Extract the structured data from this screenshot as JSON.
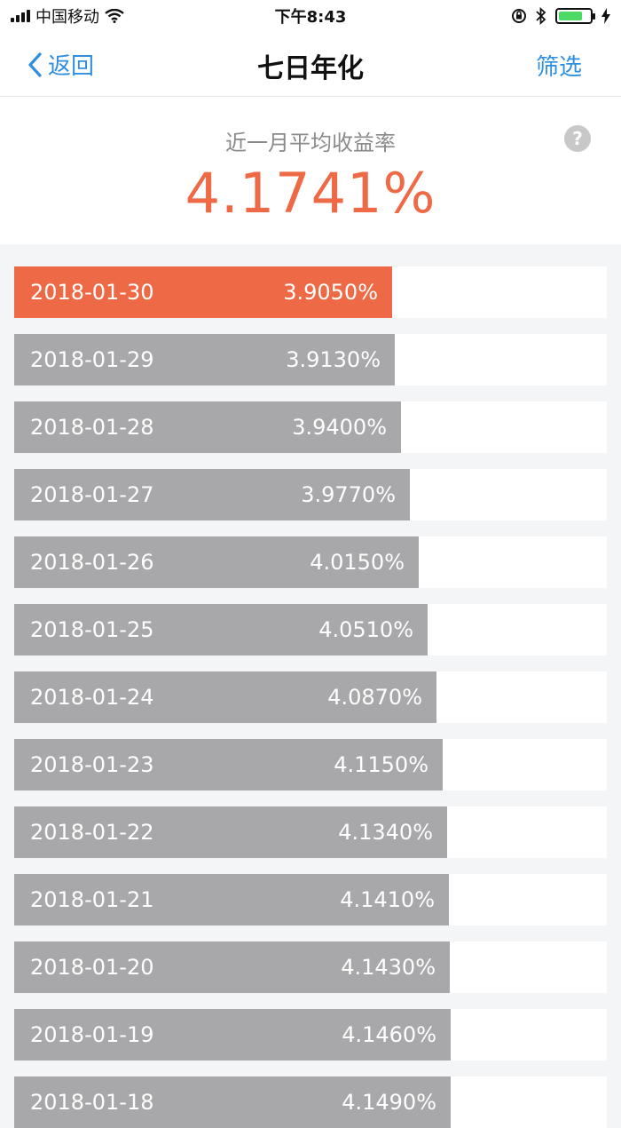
{
  "status_bar": {
    "carrier": "中国移动",
    "time": "下午8:43"
  },
  "nav": {
    "back_label": "返回",
    "title": "七日年化",
    "filter_label": "筛选"
  },
  "summary": {
    "label": "近一月平均收益率",
    "value": "4.1741%",
    "help_icon": "?"
  },
  "colors": {
    "accent": "#ee6a47",
    "link": "#2f8fde",
    "bar": "#a8a8aa"
  },
  "rows": [
    {
      "date": "2018-01-30",
      "rate": "3.9050%",
      "value": 3.905,
      "active": true
    },
    {
      "date": "2018-01-29",
      "rate": "3.9130%",
      "value": 3.913
    },
    {
      "date": "2018-01-28",
      "rate": "3.9400%",
      "value": 3.94
    },
    {
      "date": "2018-01-27",
      "rate": "3.9770%",
      "value": 3.977
    },
    {
      "date": "2018-01-26",
      "rate": "4.0150%",
      "value": 4.015
    },
    {
      "date": "2018-01-25",
      "rate": "4.0510%",
      "value": 4.051
    },
    {
      "date": "2018-01-24",
      "rate": "4.0870%",
      "value": 4.087
    },
    {
      "date": "2018-01-23",
      "rate": "4.1150%",
      "value": 4.115
    },
    {
      "date": "2018-01-22",
      "rate": "4.1340%",
      "value": 4.134
    },
    {
      "date": "2018-01-21",
      "rate": "4.1410%",
      "value": 4.141
    },
    {
      "date": "2018-01-20",
      "rate": "4.1430%",
      "value": 4.143
    },
    {
      "date": "2018-01-19",
      "rate": "4.1460%",
      "value": 4.146
    },
    {
      "date": "2018-01-18",
      "rate": "4.1490%",
      "value": 4.149
    }
  ]
}
